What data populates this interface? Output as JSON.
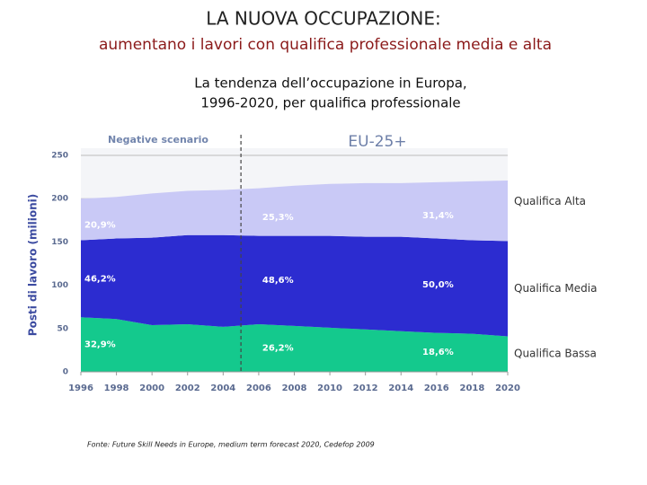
{
  "slide": {
    "title": "LA NUOVA OCCUPAZIONE:",
    "subtitle": "aumentano i lavori con qualifica professionale media e alta",
    "caption": [
      "La tendenza dell’occupazione in Europa,",
      "1996-2020, per qualifica professionale"
    ],
    "source": "Fonte: Future Skill Needs in Europe, medium term forecast 2020, Cedefop 2009"
  },
  "chart_data": {
    "type": "area",
    "stacked": true,
    "title": "EU-25+",
    "subtitle": "Negative scenario",
    "y_label": "Posti di lavoro (milioni)",
    "x": [
      1996,
      1998,
      2000,
      2002,
      2004,
      2006,
      2008,
      2010,
      2012,
      2014,
      2016,
      2018,
      2020
    ],
    "series": [
      {
        "name": "Qualifica Bassa",
        "color": "#14c98d",
        "values": [
          63,
          61,
          54,
          55,
          52,
          55,
          53,
          51,
          49,
          47,
          45,
          44,
          41
        ],
        "shares": [
          "32,9%",
          "26,2%",
          "18,6%"
        ]
      },
      {
        "name": "Qualifica Media",
        "color": "#2c2cd0",
        "values": [
          89,
          93,
          101,
          103,
          106,
          102,
          104,
          106,
          107,
          109,
          109,
          108,
          110
        ],
        "shares": [
          "46,2%",
          "48,6%",
          "50,0%"
        ]
      },
      {
        "name": "Qualifica Alta",
        "color": "#c9c9f6",
        "values": [
          48,
          48,
          51,
          51,
          52,
          55,
          58,
          60,
          62,
          62,
          65,
          68,
          70
        ],
        "shares": [
          "20,9%",
          "25,3%",
          "31,4%"
        ]
      }
    ],
    "share_years": [
      1996,
      2006,
      2015
    ],
    "divider_x": 2005,
    "xlim": [
      1996,
      2020
    ],
    "xticks": [
      1996,
      1998,
      2000,
      2002,
      2004,
      2006,
      2008,
      2010,
      2012,
      2014,
      2016,
      2018,
      2020
    ],
    "ylim": [
      0,
      250
    ],
    "yticks": [
      0,
      50,
      100,
      150,
      200,
      250
    ],
    "grid": true
  }
}
